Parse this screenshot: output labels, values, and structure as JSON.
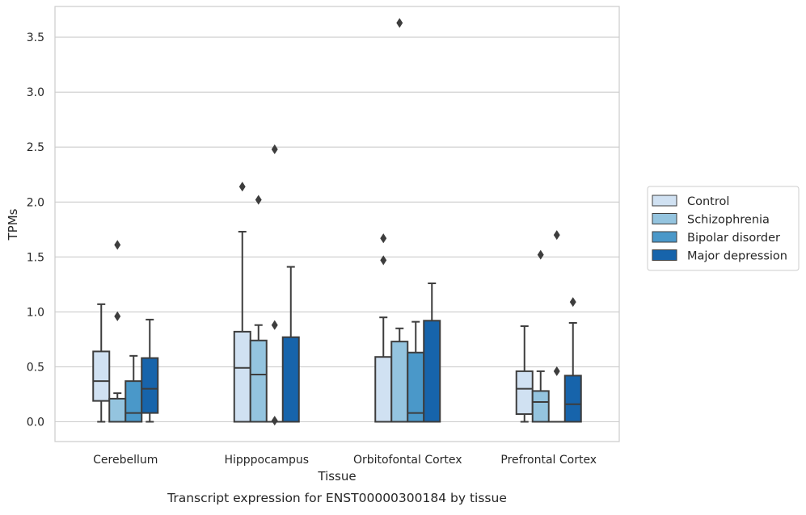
{
  "chart_data": {
    "type": "box",
    "xlabel": "Tissue",
    "ylabel": "TPMs",
    "caption": "Transcript expression for ENST00000300184 by tissue",
    "ylim": [
      -0.18,
      3.78
    ],
    "yticks": [
      0.0,
      0.5,
      1.0,
      1.5,
      2.0,
      2.5,
      3.0,
      3.5
    ],
    "ytick_labels": [
      "0.0",
      "0.5",
      "1.0",
      "1.5",
      "2.0",
      "2.5",
      "3.0",
      "3.5"
    ],
    "grid": "horizontal",
    "legend_position": "right",
    "categories": [
      "Cerebellum",
      "Hipppocampus",
      "Orbitofontal Cortex",
      "Prefrontal Cortex"
    ],
    "series": [
      {
        "name": "Control",
        "color": "#d0e1f2",
        "boxes": [
          {
            "min": 0.0,
            "q1": 0.19,
            "median": 0.37,
            "q3": 0.64,
            "max": 1.07,
            "outliers": []
          },
          {
            "min": 0.0,
            "q1": 0.0,
            "median": 0.49,
            "q3": 0.82,
            "max": 1.73,
            "outliers": [
              2.14
            ]
          },
          {
            "min": 0.0,
            "q1": 0.0,
            "median": 0.0,
            "q3": 0.59,
            "max": 0.95,
            "outliers": [
              1.47,
              1.67
            ]
          },
          {
            "min": 0.0,
            "q1": 0.07,
            "median": 0.3,
            "q3": 0.46,
            "max": 0.87,
            "outliers": []
          }
        ]
      },
      {
        "name": "Schizophrenia",
        "color": "#94c4df",
        "boxes": [
          {
            "min": 0.0,
            "q1": 0.0,
            "median": 0.0,
            "q3": 0.21,
            "max": 0.26,
            "outliers": [
              0.96,
              1.61
            ]
          },
          {
            "min": 0.0,
            "q1": 0.0,
            "median": 0.43,
            "q3": 0.74,
            "max": 0.88,
            "outliers": [
              2.02
            ]
          },
          {
            "min": 0.0,
            "q1": 0.0,
            "median": 0.0,
            "q3": 0.73,
            "max": 0.85,
            "outliers": [
              3.63
            ]
          },
          {
            "min": 0.0,
            "q1": 0.0,
            "median": 0.18,
            "q3": 0.28,
            "max": 0.46,
            "outliers": [
              1.52
            ]
          }
        ]
      },
      {
        "name": "Bipolar disorder",
        "color": "#4a98c9",
        "boxes": [
          {
            "min": 0.0,
            "q1": 0.0,
            "median": 0.08,
            "q3": 0.37,
            "max": 0.6,
            "outliers": []
          },
          {
            "min": 0.0,
            "q1": 0.0,
            "median": 0.0,
            "q3": 0.0,
            "max": 0.0,
            "outliers": [
              0.01,
              0.88,
              2.48
            ]
          },
          {
            "min": 0.0,
            "q1": 0.0,
            "median": 0.08,
            "q3": 0.63,
            "max": 0.91,
            "outliers": []
          },
          {
            "min": 0.0,
            "q1": 0.0,
            "median": 0.0,
            "q3": 0.0,
            "max": 0.0,
            "outliers": [
              0.46,
              1.7
            ]
          }
        ]
      },
      {
        "name": "Major depression",
        "color": "#1764ab",
        "boxes": [
          {
            "min": 0.0,
            "q1": 0.08,
            "median": 0.3,
            "q3": 0.58,
            "max": 0.93,
            "outliers": []
          },
          {
            "min": 0.0,
            "q1": 0.0,
            "median": 0.0,
            "q3": 0.77,
            "max": 1.41,
            "outliers": []
          },
          {
            "min": 0.0,
            "q1": 0.0,
            "median": 0.0,
            "q3": 0.92,
            "max": 1.26,
            "outliers": []
          },
          {
            "min": 0.0,
            "q1": 0.0,
            "median": 0.16,
            "q3": 0.42,
            "max": 0.9,
            "outliers": [
              1.09
            ]
          }
        ]
      }
    ]
  }
}
